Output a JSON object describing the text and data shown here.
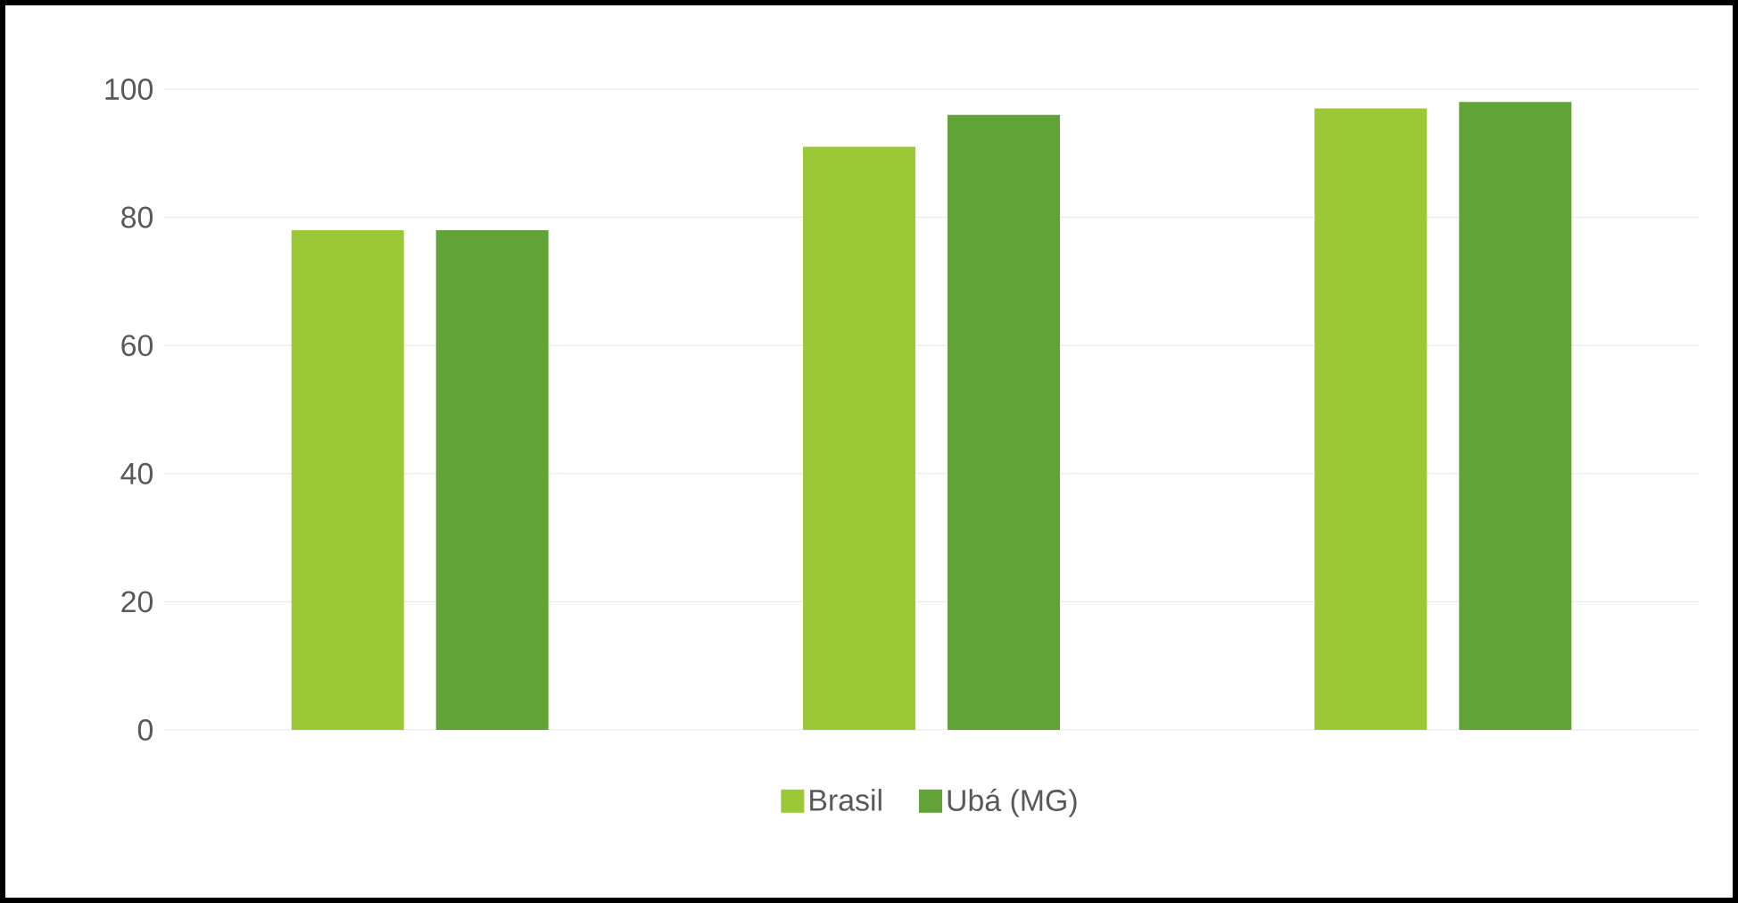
{
  "chart_data": {
    "type": "bar",
    "categories": [
      null,
      null,
      null
    ],
    "series": [
      {
        "name": "Brasil",
        "color": "#9bc837",
        "values": [
          78,
          91,
          97
        ]
      },
      {
        "name": "Ubá (MG)",
        "color": "#62a337",
        "values": [
          78,
          96,
          98
        ]
      }
    ],
    "ylim": [
      0,
      100
    ],
    "yticks": [
      0,
      20,
      40,
      60,
      80,
      100
    ],
    "grid": "y",
    "legend": "bottom"
  }
}
